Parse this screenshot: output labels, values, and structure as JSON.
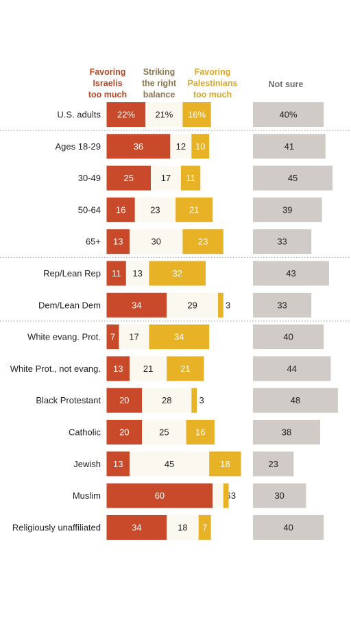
{
  "chart_data": {
    "type": "bar",
    "stacked": true,
    "headers": {
      "israelis": [
        "Favoring",
        "Israelis",
        "too much"
      ],
      "balance": [
        "Striking",
        "the right",
        "balance"
      ],
      "palestinians": [
        "Favoring",
        "Palestinians",
        "too much"
      ],
      "not_sure": [
        "Not sure"
      ]
    },
    "categories": [
      "U.S. adults",
      "Ages 18-29",
      "30-49",
      "50-64",
      "65+",
      "Rep/Lean Rep",
      "Dem/Lean Dem",
      "White evang. Prot.",
      "White Prot., not evang.",
      "Black Protestant",
      "Catholic",
      "Jewish",
      "Muslim",
      "Religiously unaffiliated"
    ],
    "series": [
      {
        "key": "israelis",
        "name": "Favoring Israelis too much",
        "values": [
          22,
          36,
          25,
          16,
          13,
          11,
          34,
          7,
          13,
          20,
          20,
          13,
          60,
          34
        ]
      },
      {
        "key": "balance",
        "name": "Striking the right balance",
        "values": [
          21,
          12,
          17,
          23,
          30,
          13,
          29,
          17,
          21,
          28,
          25,
          45,
          6,
          18
        ]
      },
      {
        "key": "palestinians",
        "name": "Favoring Palestinians too much",
        "values": [
          16,
          10,
          11,
          21,
          23,
          32,
          3,
          34,
          21,
          3,
          16,
          18,
          3,
          7
        ]
      },
      {
        "key": "not_sure",
        "name": "Not sure",
        "values": [
          40,
          41,
          45,
          39,
          33,
          43,
          33,
          40,
          44,
          48,
          38,
          23,
          30,
          40
        ]
      }
    ],
    "value_labels": {
      "israelis": [
        "22%",
        "36",
        "25",
        "16",
        "13",
        "11",
        "34",
        "7",
        "13",
        "20",
        "20",
        "13",
        "60",
        "34"
      ],
      "balance": [
        "21%",
        "12",
        "17",
        "23",
        "30",
        "13",
        "29",
        "17",
        "21",
        "28",
        "25",
        "45",
        "6",
        "18"
      ],
      "palestinians": [
        "16%",
        "10",
        "11",
        "21",
        "23",
        "32",
        "3",
        "34",
        "21",
        "3",
        "16",
        "18",
        "3",
        "7"
      ],
      "not_sure": [
        "40%",
        "41",
        "45",
        "39",
        "33",
        "43",
        "33",
        "40",
        "44",
        "48",
        "38",
        "23",
        "30",
        "40"
      ]
    },
    "group_separators_after": [
      0,
      4,
      6
    ],
    "colors": {
      "israelis": "#c94a2a",
      "balance": "#fbf8ef",
      "palestinians": "#e8b227",
      "not_sure": "#d0cbc6",
      "israelis_header": "#b34726",
      "balance_header": "#8a7650",
      "palestinians_header": "#d9a72a",
      "not_sure_header": "#6e6e6e"
    }
  }
}
